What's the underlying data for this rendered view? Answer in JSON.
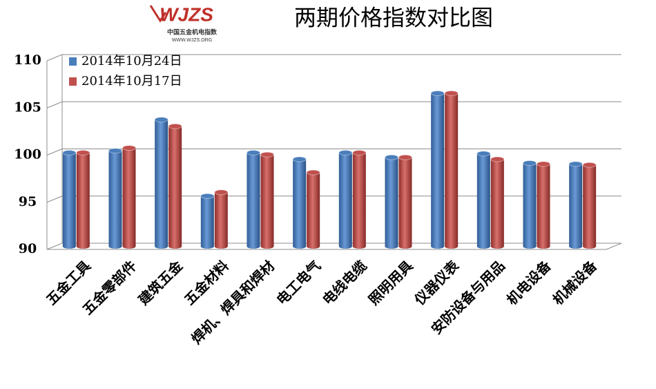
{
  "logo": {
    "name": "WJZS",
    "subtitle": "中国五金机电指数",
    "url": "WWW.WJZS.ORG"
  },
  "chart_data": {
    "type": "bar",
    "title": "两期价格指数对比图",
    "categories": [
      "五金工具",
      "五金零部件",
      "建筑五金",
      "五金材料",
      "焊机、焊具和焊材",
      "电工电气",
      "电线电缆",
      "照明用具",
      "仪器仪表",
      "安防设备与用品",
      "机电设备",
      "机械设备"
    ],
    "series": [
      {
        "name": "2014年10月24日",
        "color": "#4a7ebb",
        "values": [
          99.6,
          99.8,
          103.1,
          95.0,
          99.6,
          98.9,
          99.6,
          99.1,
          105.9,
          99.5,
          98.5,
          98.4
        ]
      },
      {
        "name": "2014年10月17日",
        "color": "#c0504d",
        "values": [
          99.6,
          100.1,
          102.4,
          95.4,
          99.4,
          97.5,
          99.6,
          99.1,
          105.9,
          98.9,
          98.4,
          98.3
        ]
      }
    ],
    "ylim": [
      90,
      110
    ],
    "yticks": [
      90,
      95,
      100,
      105,
      110
    ],
    "grid": true,
    "legend": "top-left"
  }
}
